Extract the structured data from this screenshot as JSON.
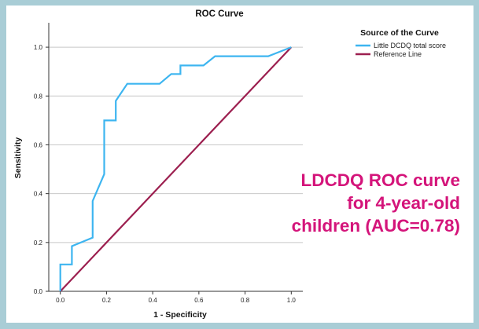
{
  "caption": "LDCDQ ROC curve for 4-year-old children (AUC=0.78)",
  "chart_data": {
    "type": "line",
    "title": "ROC Curve",
    "xlabel": "1 - Specificity",
    "ylabel": "Sensitivity",
    "xlim": [
      -0.05,
      1.05
    ],
    "ylim": [
      0.0,
      1.1
    ],
    "xticks": [
      "0.0",
      "0.2",
      "0.4",
      "0.6",
      "0.8",
      "1.0"
    ],
    "yticks": [
      "0.0",
      "0.2",
      "0.4",
      "0.6",
      "0.8",
      "1.0"
    ],
    "grid": "horizontal",
    "legend": {
      "title": "Source of the Curve",
      "placement": "top-right"
    },
    "series": [
      {
        "name": "Little DCDQ total score",
        "color": "#3db5f0",
        "x": [
          0.0,
          0.0,
          0.05,
          0.05,
          0.14,
          0.14,
          0.19,
          0.19,
          0.19,
          0.24,
          0.24,
          0.29,
          0.43,
          0.48,
          0.52,
          0.52,
          0.62,
          0.67,
          0.9,
          1.0
        ],
        "y": [
          0.0,
          0.11,
          0.11,
          0.185,
          0.22,
          0.37,
          0.48,
          0.63,
          0.7,
          0.7,
          0.78,
          0.85,
          0.85,
          0.89,
          0.89,
          0.925,
          0.925,
          0.963,
          0.963,
          1.0
        ]
      },
      {
        "name": "Reference Line",
        "color": "#9c1f4f",
        "x": [
          0.0,
          1.0
        ],
        "y": [
          0.0,
          1.0
        ]
      }
    ]
  }
}
